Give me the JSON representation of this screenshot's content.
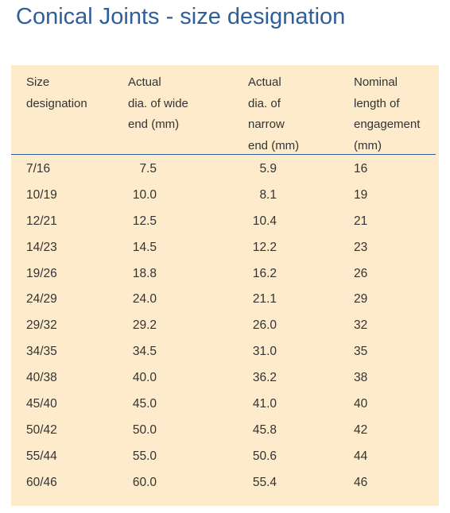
{
  "title": "Conical Joints - size designation",
  "table": {
    "headers": [
      {
        "lines": [
          "Size",
          "designation"
        ]
      },
      {
        "lines": [
          "Actual",
          "dia. of wide",
          "end (mm)"
        ]
      },
      {
        "lines": [
          "Actual",
          "dia. of",
          "narrow",
          "end (mm)"
        ]
      },
      {
        "lines": [
          "Nominal",
          "length of",
          "engagement",
          "(mm)"
        ]
      }
    ],
    "rows": [
      {
        "size": "7/16",
        "wide": "7.5",
        "narrow": "5.9",
        "length": "16"
      },
      {
        "size": "10/19",
        "wide": "10.0",
        "narrow": "8.1",
        "length": "19"
      },
      {
        "size": "12/21",
        "wide": "12.5",
        "narrow": "10.4",
        "length": "21"
      },
      {
        "size": "14/23",
        "wide": "14.5",
        "narrow": "12.2",
        "length": "23"
      },
      {
        "size": "19/26",
        "wide": "18.8",
        "narrow": "16.2",
        "length": "26"
      },
      {
        "size": "24/29",
        "wide": "24.0",
        "narrow": "21.1",
        "length": "29"
      },
      {
        "size": "29/32",
        "wide": "29.2",
        "narrow": "26.0",
        "length": "32"
      },
      {
        "size": "34/35",
        "wide": "34.5",
        "narrow": "31.0",
        "length": "35"
      },
      {
        "size": "40/38",
        "wide": "40.0",
        "narrow": "36.2",
        "length": "38"
      },
      {
        "size": "45/40",
        "wide": "45.0",
        "narrow": "41.0",
        "length": "40"
      },
      {
        "size": "50/42",
        "wide": "50.0",
        "narrow": "45.8",
        "length": "42"
      },
      {
        "size": "55/44",
        "wide": "55.0",
        "narrow": "50.6",
        "length": "44"
      },
      {
        "size": "60/46",
        "wide": "60.0",
        "narrow": "55.4",
        "length": "46"
      }
    ]
  },
  "colors": {
    "title": "#2f5f9b",
    "panel_background": "#fdebcc",
    "header_rule": "#2f5f9b",
    "text": "#333333"
  }
}
